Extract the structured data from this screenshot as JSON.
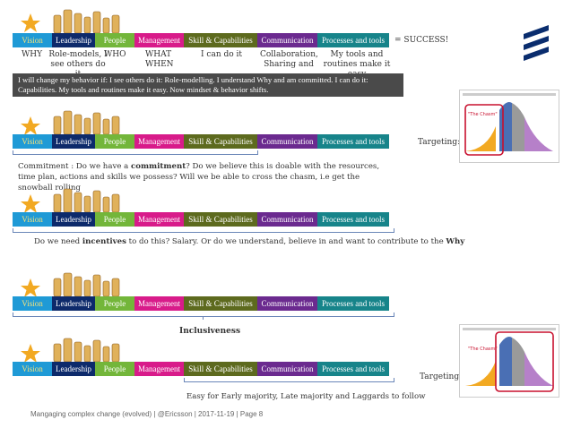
{
  "bar_labels": {
    "vision": "Vision",
    "leadership": "Leadership",
    "people": "People",
    "management": "Management",
    "skill": "Skill & Capabilities",
    "communication": "Communication",
    "processes": "Processes and tools"
  },
  "row1": {
    "success": "= SUCCESS!",
    "labels": {
      "why": "WHY",
      "rolemodels": "Role-models, I see others do it",
      "who": "WHO",
      "whatwhen": "WHAT WHEN",
      "icando": "I can do it",
      "collab": "Collaboration, Sharing and",
      "tools": "My tools and routines make it easy"
    },
    "banner": "I will change my behavior if: I see others do it: Role-modelling. I understand Why and am committed. I can do it: Capabilities. My tools and routines make it easy. Now mindset & behavior shifts."
  },
  "row2": {
    "targeting": "Targeting:",
    "text_pre": "Commitment :  Do we have a ",
    "text_bold": "commitment",
    "text_post": "? Do we believe this is doable with the resources, time plan, actions and skills we possess? Will we be able to cross the chasm, i.e get the snowball rolling"
  },
  "row3": {
    "text_pre": "Do we need ",
    "text_bold": "incentives",
    "text_mid": " to do this? Salary. Or do we understand, believe in and want to contribute to the ",
    "text_bold2": "Why"
  },
  "row4": {
    "caption": "Inclusiveness"
  },
  "row5": {
    "targeting": "Targeting:",
    "caption": "Easy for Early majority, Late majority and Laggards to follow"
  },
  "footer": "Mangaging complex change (evolved)  |  @Ericsson  |  2017-11-19  |  Page 8",
  "colors": {
    "vision": "#1f9ad6",
    "leadership": "#0d2a6b",
    "people": "#73b63a",
    "management": "#d81b8a",
    "skill": "#5d6a1e",
    "communication": "#6b2a8f",
    "processes": "#17848a",
    "banner": "#4a4a4a",
    "star": "#f2a922",
    "ericsson": "#0a2d6e"
  },
  "icons": {
    "star": "star-icon",
    "chess": "chess-pieces-icon",
    "logo": "ericsson-logo-icon",
    "adoption": "adoption-curve-chart-icon"
  }
}
